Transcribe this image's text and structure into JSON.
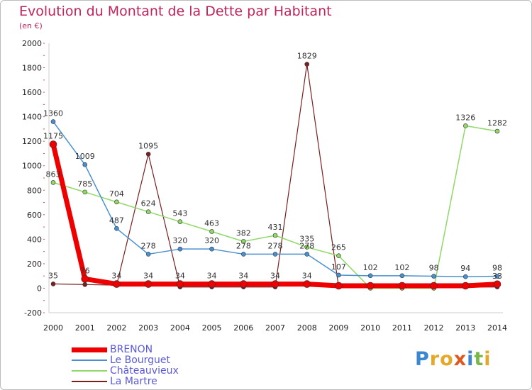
{
  "title": "Evolution du Montant de la Dette par Habitant",
  "subtitle": "(en €)",
  "logo": {
    "text": [
      "P",
      "r",
      "o",
      "x",
      "i",
      "t",
      "i"
    ],
    "colors": [
      "#3a86d0",
      "#e4a92a",
      "#e4a92a",
      "#e0571f",
      "#3a86d0",
      "#7ab648",
      "#e4a92a"
    ]
  },
  "chart_data": {
    "type": "line",
    "x": [
      "2000",
      "2001",
      "2002",
      "2003",
      "2004",
      "2005",
      "2006",
      "2007",
      "2008",
      "2009",
      "2010",
      "2011",
      "2012",
      "2013",
      "2014"
    ],
    "yticks": [
      "-200",
      "0",
      "200",
      "400",
      "600",
      "800",
      "1000",
      "1200",
      "1400",
      "1600",
      "1800",
      "2000"
    ],
    "ylim": [
      -200,
      2000
    ],
    "grid": false,
    "legend_position": "bottom-left",
    "series": [
      {
        "name": "BRENON",
        "color": "#ee0000",
        "width": 7,
        "marker": 5,
        "values": [
          1175,
          76,
          34,
          34,
          34,
          34,
          34,
          34,
          34,
          20,
          20,
          20,
          20,
          20,
          33
        ],
        "labels": [
          "1175",
          "76",
          "34",
          "34",
          "34",
          "34",
          "34",
          "34",
          "34",
          "",
          "",
          "",
          "",
          "",
          "33"
        ]
      },
      {
        "name": "Le Bourguet",
        "color": "#4a90d0",
        "width": 1.5,
        "marker": 3,
        "values": [
          1360,
          1009,
          487,
          278,
          320,
          320,
          278,
          278,
          278,
          107,
          102,
          102,
          98,
          94,
          98
        ],
        "labels": [
          "1360",
          "1009",
          "487",
          "278",
          "320",
          "320",
          "278",
          "278",
          "278",
          "107",
          "102",
          "102",
          "98",
          "94",
          "98"
        ]
      },
      {
        "name": "Châteauvieux",
        "color": "#90d868",
        "width": 1.5,
        "marker": 3,
        "values": [
          863,
          785,
          704,
          624,
          543,
          463,
          382,
          431,
          335,
          265,
          0,
          0,
          0,
          1326,
          1282
        ],
        "labels": [
          "863",
          "785",
          "704",
          "624",
          "543",
          "463",
          "382",
          "431",
          "335",
          "265",
          "",
          "",
          "",
          "1326",
          "1282"
        ]
      },
      {
        "name": "La Martre",
        "color": "#7a2020",
        "width": 1.2,
        "marker": 3,
        "values": [
          35,
          30,
          25,
          1095,
          10,
          10,
          10,
          10,
          1829,
          10,
          10,
          10,
          10,
          10,
          10
        ],
        "labels": [
          "35",
          "",
          "",
          "1095",
          "",
          "",
          "",
          "",
          "1829",
          "",
          "",
          "",
          "",
          "",
          ""
        ]
      }
    ]
  }
}
